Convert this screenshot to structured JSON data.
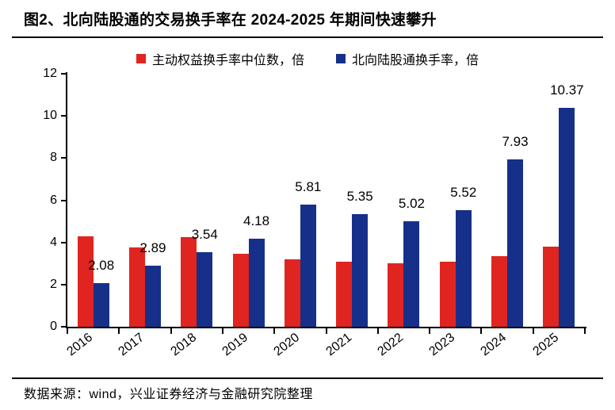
{
  "header": {
    "title": "图2、北向陆股通的交易换手率在 2024-2025 年期间快速攀升"
  },
  "chart_data": {
    "type": "bar",
    "title": "图2、北向陆股通的交易换手率在 2024-2025 年期间快速攀升",
    "categories": [
      "2016",
      "2017",
      "2018",
      "2019",
      "2020",
      "2021",
      "2022",
      "2023",
      "2024",
      "2025"
    ],
    "series": [
      {
        "name": "主动权益换手率中位数，倍",
        "color": "#E02420",
        "values": [
          4.3,
          3.75,
          4.25,
          3.45,
          3.2,
          3.1,
          3.0,
          3.1,
          3.35,
          3.8
        ],
        "data_labels": false
      },
      {
        "name": "北向陆股通换手率，倍",
        "color": "#16308A",
        "values": [
          2.08,
          2.89,
          3.54,
          4.18,
          5.81,
          5.35,
          5.02,
          5.52,
          7.93,
          10.37
        ],
        "data_labels": true
      }
    ],
    "ylim": [
      0,
      12
    ],
    "yticks": [
      0,
      2,
      4,
      6,
      8,
      10,
      12
    ],
    "grid": false,
    "legend_position": "top",
    "axis_color": "#000000",
    "label_color": "#000000"
  },
  "footer": {
    "source": "数据来源：wind，兴业证券经济与金融研究院整理"
  }
}
